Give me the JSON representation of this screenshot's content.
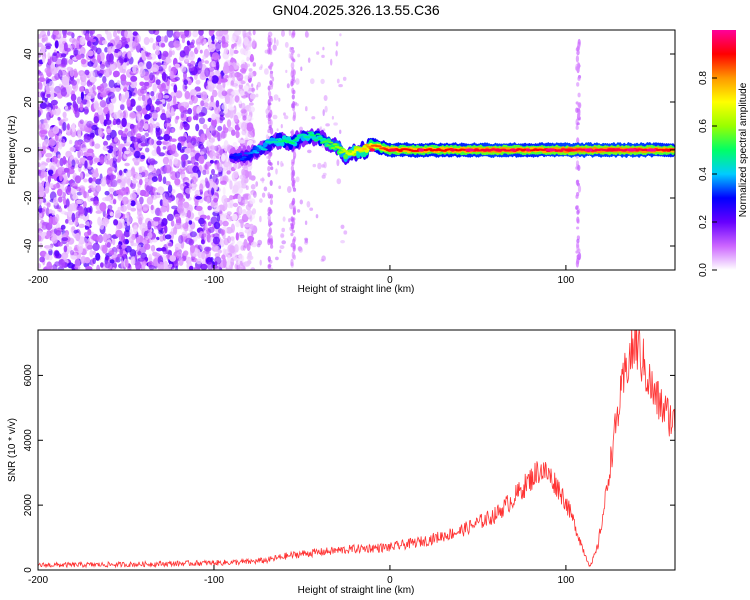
{
  "title": "GN04.2025.326.13.55.C36",
  "chart_data": [
    {
      "type": "heatmap",
      "xlabel": "Height of straight line (km)",
      "ylabel": "Frequency (Hz)",
      "xlim": [
        -200,
        162
      ],
      "ylim": [
        -50,
        50
      ],
      "x_ticks": [
        -200,
        -100,
        0,
        100
      ],
      "y_ticks": [
        -40,
        -20,
        0,
        20,
        40
      ],
      "colorbar": {
        "label": "Normalized spectral amplitude",
        "range": [
          0,
          1
        ],
        "ticks": [
          0.0,
          0.2,
          0.4,
          0.6,
          0.8
        ],
        "colormap": [
          "#ffffff",
          "#cc66ff",
          "#6600ff",
          "#0000ff",
          "#00ccff",
          "#00ff66",
          "#99ff00",
          "#ffff00",
          "#ff9900",
          "#ff0000",
          "#ff0099"
        ]
      },
      "noise_region_x": [
        -200,
        -85
      ],
      "signal_track": {
        "x": [
          -90,
          -80,
          -75,
          -70,
          -65,
          -60,
          -55,
          -50,
          -45,
          -40,
          -35,
          -30,
          -25,
          -20,
          -15,
          -10,
          -5,
          0,
          20,
          40,
          60,
          80,
          100,
          120,
          140,
          162
        ],
        "freq": [
          -3,
          -2,
          0,
          2,
          4,
          4,
          3,
          5,
          6,
          5,
          3,
          1,
          -2,
          -1,
          0,
          2,
          1,
          0,
          0,
          0,
          0,
          0,
          0,
          0,
          0,
          0
        ],
        "amplitude": [
          0.3,
          0.35,
          0.4,
          0.45,
          0.45,
          0.5,
          0.5,
          0.45,
          0.5,
          0.5,
          0.55,
          0.6,
          0.65,
          0.7,
          0.75,
          0.85,
          0.85,
          0.9,
          0.9,
          0.9,
          0.95,
          0.9,
          0.95,
          0.95,
          0.95,
          0.9
        ]
      },
      "vertical_streaks_x": [
        -68,
        -55,
        107
      ]
    },
    {
      "type": "line",
      "xlabel": "Height of straight line (km)",
      "ylabel": "SNR (10 * v/v)",
      "xlim": [
        -200,
        162
      ],
      "ylim": [
        0,
        7400
      ],
      "x_ticks": [
        -200,
        -100,
        0,
        100
      ],
      "y_ticks": [
        0,
        2000,
        4000,
        6000
      ],
      "series": [
        {
          "color": "#ff3333",
          "x": [
            -200,
            -150,
            -120,
            -100,
            -80,
            -70,
            -60,
            -50,
            -40,
            -20,
            0,
            20,
            40,
            60,
            70,
            80,
            85,
            90,
            95,
            100,
            105,
            110,
            114,
            118,
            122,
            126,
            130,
            135,
            140,
            145,
            150,
            155,
            162
          ],
          "y": [
            150,
            170,
            200,
            220,
            250,
            300,
            420,
            500,
            550,
            650,
            700,
            900,
            1200,
            1700,
            2200,
            2800,
            3100,
            2950,
            2600,
            2100,
            1400,
            600,
            100,
            700,
            2000,
            3600,
            5000,
            6400,
            7000,
            6200,
            5400,
            5000,
            4500
          ]
        }
      ]
    }
  ]
}
